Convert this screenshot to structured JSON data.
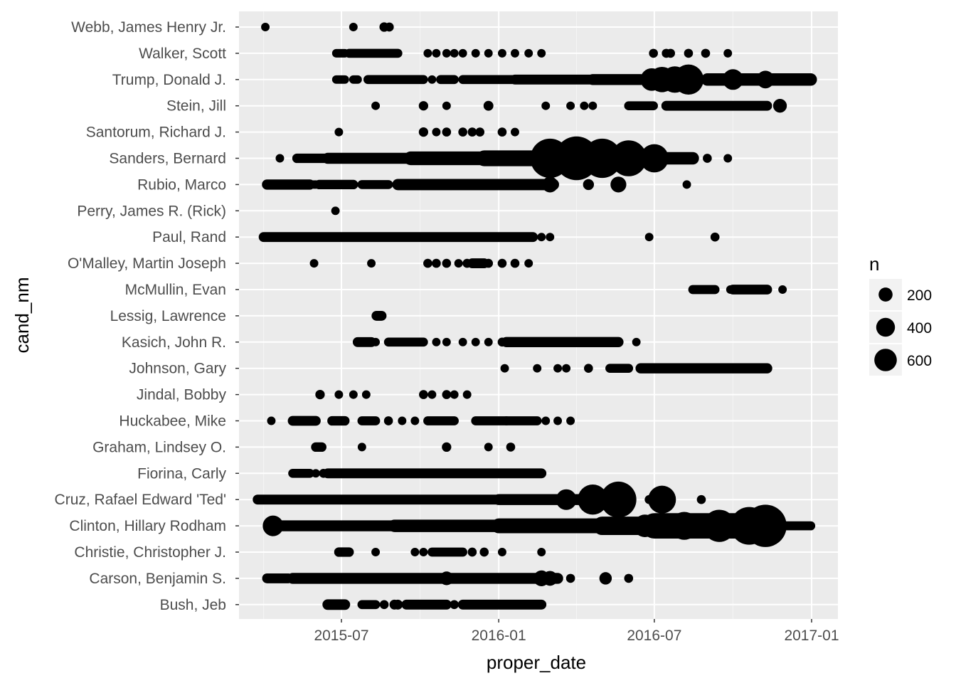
{
  "chart_data": {
    "type": "scatter",
    "xlabel": "proper_date",
    "ylabel": "cand_nm",
    "x_ticks": [
      "2015-07",
      "2016-01",
      "2016-07",
      "2017-01"
    ],
    "x_range": [
      "2015-03-23",
      "2017-01-10"
    ],
    "grid": true,
    "legend_position": "right",
    "legend": {
      "title": "n",
      "entries": [
        200,
        400,
        600
      ]
    },
    "categories": [
      "Bush, Jeb",
      "Carson, Benjamin S.",
      "Christie, Christopher J.",
      "Clinton, Hillary Rodham",
      "Cruz, Rafael Edward 'Ted'",
      "Fiorina, Carly",
      "Graham, Lindsey O.",
      "Huckabee, Mike",
      "Jindal, Bobby",
      "Johnson, Gary",
      "Kasich, John R.",
      "Lessig, Lawrence",
      "McMullin, Evan",
      "O'Malley, Martin Joseph",
      "Paul, Rand",
      "Perry, James R. (Rick)",
      "Rubio, Marco",
      "Sanders, Bernard",
      "Santorum, Richard J.",
      "Stein, Jill",
      "Trump, Donald J.",
      "Walker, Scott",
      "Webb, James Henry Jr."
    ],
    "series": [
      {
        "candidate": "Webb, James Henry Jr.",
        "segments": [],
        "points": [
          [
            "2015-04-03",
            8
          ],
          [
            "2015-07-15",
            8
          ],
          [
            "2015-08-20",
            12
          ],
          [
            "2015-08-26",
            10
          ]
        ]
      },
      {
        "candidate": "Walker, Scott",
        "segments": [
          [
            "2015-06-25",
            "2015-07-05",
            8
          ],
          [
            "2015-07-10",
            "2015-09-05",
            10
          ]
        ],
        "points": [
          [
            "2015-10-10",
            8
          ],
          [
            "2015-10-20",
            8
          ],
          [
            "2015-11-01",
            8
          ],
          [
            "2015-11-10",
            8
          ],
          [
            "2015-11-20",
            8
          ],
          [
            "2015-12-05",
            8
          ],
          [
            "2015-12-20",
            8
          ],
          [
            "2016-01-05",
            8
          ],
          [
            "2016-01-20",
            8
          ],
          [
            "2016-02-05",
            8
          ],
          [
            "2016-02-20",
            8
          ],
          [
            "2016-06-30",
            10
          ],
          [
            "2016-07-15",
            10
          ],
          [
            "2016-07-20",
            10
          ],
          [
            "2016-08-10",
            10
          ],
          [
            "2016-08-30",
            10
          ],
          [
            "2016-09-25",
            8
          ]
        ]
      },
      {
        "candidate": "Trump, Donald J.",
        "segments": [
          [
            "2015-06-25",
            "2015-07-05",
            8
          ],
          [
            "2015-07-15",
            "2015-07-20",
            8
          ],
          [
            "2015-08-01",
            "2015-10-05",
            10
          ],
          [
            "2015-10-25",
            "2015-11-10",
            10
          ],
          [
            "2015-11-20",
            "2016-01-20",
            10
          ],
          [
            "2016-01-20",
            "2016-04-20",
            14
          ],
          [
            "2016-04-20",
            "2016-06-15",
            20
          ],
          [
            "2016-09-01",
            "2016-12-31",
            30
          ]
        ],
        "points": [
          [
            "2015-10-15",
            8
          ],
          [
            "2016-06-28",
            150
          ],
          [
            "2016-07-10",
            200
          ],
          [
            "2016-07-25",
            220
          ],
          [
            "2016-08-10",
            300
          ],
          [
            "2016-10-01",
            120
          ],
          [
            "2016-11-08",
            80
          ]
        ]
      },
      {
        "candidate": "Stein, Jill",
        "segments": [
          [
            "2016-06-01",
            "2016-06-30",
            10
          ],
          [
            "2016-07-15",
            "2016-11-10",
            14
          ]
        ],
        "points": [
          [
            "2015-08-10",
            8
          ],
          [
            "2015-10-05",
            12
          ],
          [
            "2015-11-01",
            8
          ],
          [
            "2015-12-20",
            14
          ],
          [
            "2016-02-25",
            8
          ],
          [
            "2016-03-25",
            8
          ],
          [
            "2016-04-10",
            8
          ],
          [
            "2016-04-20",
            8
          ],
          [
            "2016-11-25",
            40
          ]
        ]
      },
      {
        "candidate": "Santorum, Richard J.",
        "segments": [],
        "points": [
          [
            "2015-06-28",
            8
          ],
          [
            "2015-10-05",
            12
          ],
          [
            "2015-10-20",
            8
          ],
          [
            "2015-11-01",
            10
          ],
          [
            "2015-11-20",
            10
          ],
          [
            "2015-12-01",
            10
          ],
          [
            "2015-12-10",
            10
          ],
          [
            "2016-01-05",
            10
          ],
          [
            "2016-01-20",
            8
          ]
        ]
      },
      {
        "candidate": "Sanders, Bernard",
        "segments": [
          [
            "2015-05-10",
            "2015-06-15",
            12
          ],
          [
            "2015-06-15",
            "2015-09-20",
            20
          ],
          [
            "2015-09-20",
            "2015-12-15",
            40
          ],
          [
            "2015-12-15",
            "2016-02-20",
            60
          ],
          [
            "2016-02-20",
            "2016-06-01",
            150
          ],
          [
            "2016-06-01",
            "2016-08-15",
            30
          ]
        ],
        "points": [
          [
            "2015-04-20",
            8
          ],
          [
            "2016-03-01",
            550
          ],
          [
            "2016-04-01",
            700
          ],
          [
            "2016-05-01",
            550
          ],
          [
            "2016-06-01",
            450
          ],
          [
            "2016-07-01",
            260
          ],
          [
            "2016-09-01",
            10
          ],
          [
            "2016-09-25",
            8
          ]
        ]
      },
      {
        "candidate": "Rubio, Marco",
        "segments": [
          [
            "2015-04-05",
            "2015-05-25",
            16
          ],
          [
            "2015-06-05",
            "2015-07-15",
            12
          ],
          [
            "2015-07-25",
            "2015-08-25",
            10
          ],
          [
            "2015-09-05",
            "2016-03-05",
            22
          ]
        ],
        "points": [
          [
            "2015-05-30",
            8
          ],
          [
            "2015-06-01",
            8
          ],
          [
            "2016-03-01",
            60
          ],
          [
            "2016-04-15",
            20
          ],
          [
            "2016-05-20",
            60
          ],
          [
            "2016-08-08",
            8
          ]
        ]
      },
      {
        "candidate": "Perry, James R. (Rick)",
        "segments": [],
        "points": [
          [
            "2015-06-24",
            8
          ]
        ]
      },
      {
        "candidate": "Paul, Rand",
        "segments": [
          [
            "2015-04-01",
            "2016-02-10",
            14
          ]
        ],
        "points": [
          [
            "2016-02-20",
            8
          ],
          [
            "2016-03-01",
            8
          ],
          [
            "2016-06-25",
            8
          ],
          [
            "2016-09-10",
            10
          ]
        ]
      },
      {
        "candidate": "O'Malley, Martin Joseph",
        "segments": [
          [
            "2015-12-01",
            "2015-12-15",
            14
          ]
        ],
        "points": [
          [
            "2015-05-30",
            8
          ],
          [
            "2015-08-05",
            8
          ],
          [
            "2015-10-10",
            10
          ],
          [
            "2015-10-20",
            10
          ],
          [
            "2015-11-01",
            10
          ],
          [
            "2015-11-15",
            8
          ],
          [
            "2015-11-25",
            10
          ],
          [
            "2015-12-20",
            10
          ],
          [
            "2016-01-05",
            10
          ],
          [
            "2016-01-20",
            10
          ],
          [
            "2016-02-05",
            8
          ]
        ]
      },
      {
        "candidate": "McMullin, Evan",
        "segments": [
          [
            "2016-08-15",
            "2016-09-10",
            10
          ],
          [
            "2016-10-01",
            "2016-11-10",
            14
          ]
        ],
        "points": [
          [
            "2016-09-28",
            8
          ],
          [
            "2016-11-28",
            8
          ]
        ]
      },
      {
        "candidate": "Lessig, Lawrence",
        "segments": [
          [
            "2015-08-11",
            "2015-08-17",
            14
          ]
        ],
        "points": []
      },
      {
        "candidate": "Kasich, John R.",
        "segments": [
          [
            "2015-07-20",
            "2015-08-05",
            14
          ],
          [
            "2015-08-25",
            "2015-10-05",
            10
          ],
          [
            "2016-01-10",
            "2016-05-20",
            16
          ]
        ],
        "points": [
          [
            "2015-08-10",
            8
          ],
          [
            "2015-10-20",
            8
          ],
          [
            "2015-11-01",
            8
          ],
          [
            "2015-11-20",
            8
          ],
          [
            "2015-12-05",
            8
          ],
          [
            "2015-12-20",
            8
          ],
          [
            "2016-01-05",
            10
          ],
          [
            "2016-06-10",
            8
          ]
        ]
      },
      {
        "candidate": "Johnson, Gary",
        "segments": [
          [
            "2016-05-10",
            "2016-06-01",
            10
          ],
          [
            "2016-06-15",
            "2016-11-10",
            16
          ]
        ],
        "points": [
          [
            "2016-01-08",
            8
          ],
          [
            "2016-02-15",
            8
          ],
          [
            "2016-03-10",
            8
          ],
          [
            "2016-03-20",
            8
          ],
          [
            "2016-04-15",
            10
          ]
        ]
      },
      {
        "candidate": "Jindal, Bobby",
        "segments": [],
        "points": [
          [
            "2015-06-06",
            12
          ],
          [
            "2015-06-28",
            8
          ],
          [
            "2015-07-15",
            8
          ],
          [
            "2015-07-30",
            8
          ],
          [
            "2015-10-05",
            10
          ],
          [
            "2015-10-15",
            8
          ],
          [
            "2015-11-01",
            10
          ],
          [
            "2015-11-10",
            8
          ],
          [
            "2015-11-25",
            8
          ]
        ]
      },
      {
        "candidate": "Huckabee, Mike",
        "segments": [
          [
            "2015-05-05",
            "2015-06-01",
            14
          ],
          [
            "2015-06-20",
            "2015-07-05",
            12
          ],
          [
            "2015-07-25",
            "2015-08-10",
            10
          ],
          [
            "2015-10-10",
            "2015-11-10",
            10
          ],
          [
            "2015-12-05",
            "2016-01-10",
            10
          ],
          [
            "2016-01-10",
            "2016-02-15",
            10
          ]
        ],
        "points": [
          [
            "2015-04-10",
            8
          ],
          [
            "2015-08-25",
            10
          ],
          [
            "2015-09-10",
            8
          ],
          [
            "2015-09-25",
            8
          ],
          [
            "2016-02-25",
            8
          ],
          [
            "2016-03-10",
            8
          ],
          [
            "2016-03-25",
            8
          ]
        ]
      },
      {
        "candidate": "Graham, Lindsey O.",
        "segments": [
          [
            "2015-06-01",
            "2015-06-08",
            12
          ]
        ],
        "points": [
          [
            "2015-07-25",
            8
          ],
          [
            "2015-11-01",
            12
          ],
          [
            "2015-12-20",
            8
          ],
          [
            "2016-01-15",
            10
          ]
        ]
      },
      {
        "candidate": "Fiorina, Carly",
        "segments": [
          [
            "2015-05-05",
            "2015-05-25",
            10
          ],
          [
            "2015-06-15",
            "2016-02-20",
            14
          ]
        ],
        "points": [
          [
            "2015-06-01",
            8
          ],
          [
            "2015-06-10",
            10
          ]
        ]
      },
      {
        "candidate": "Cruz, Rafael Edward 'Ted'",
        "segments": [
          [
            "2015-03-25",
            "2016-01-01",
            14
          ],
          [
            "2016-01-01",
            "2016-04-20",
            20
          ],
          [
            "2016-06-25",
            "2016-07-05",
            10
          ]
        ],
        "points": [
          [
            "2016-03-20",
            120
          ],
          [
            "2016-04-20",
            300
          ],
          [
            "2016-05-20",
            450
          ],
          [
            "2016-07-10",
            250
          ],
          [
            "2016-08-25",
            10
          ]
        ]
      },
      {
        "candidate": "Clinton, Hillary Rodham",
        "segments": [
          [
            "2015-04-15",
            "2015-09-01",
            20
          ],
          [
            "2015-09-01",
            "2016-01-01",
            30
          ],
          [
            "2016-01-01",
            "2016-05-01",
            50
          ],
          [
            "2016-05-01",
            "2016-07-01",
            90
          ],
          [
            "2016-07-01",
            "2016-11-08",
            200
          ],
          [
            "2016-11-10",
            "2016-12-31",
            10
          ]
        ],
        "points": [
          [
            "2015-04-12",
            120
          ],
          [
            "2016-06-20",
            150
          ],
          [
            "2016-08-05",
            250
          ],
          [
            "2016-09-15",
            350
          ],
          [
            "2016-10-20",
            500
          ],
          [
            "2016-11-08",
            650
          ]
        ]
      },
      {
        "candidate": "Christie, Christopher J.",
        "segments": [
          [
            "2015-06-28",
            "2015-07-10",
            12
          ],
          [
            "2015-10-15",
            "2015-11-20",
            10
          ]
        ],
        "points": [
          [
            "2015-08-10",
            8
          ],
          [
            "2015-09-25",
            8
          ],
          [
            "2015-10-05",
            8
          ],
          [
            "2015-12-01",
            10
          ],
          [
            "2015-12-15",
            10
          ],
          [
            "2016-01-05",
            8
          ],
          [
            "2016-02-20",
            8
          ]
        ]
      },
      {
        "candidate": "Carson, Benjamin S.",
        "segments": [
          [
            "2015-04-05",
            "2015-04-30",
            14
          ],
          [
            "2015-05-05",
            "2016-03-10",
            20
          ]
        ],
        "points": [
          [
            "2015-11-01",
            40
          ],
          [
            "2016-02-20",
            60
          ],
          [
            "2016-03-01",
            50
          ],
          [
            "2016-03-25",
            10
          ],
          [
            "2016-05-05",
            30
          ],
          [
            "2016-06-01",
            10
          ]
        ]
      },
      {
        "candidate": "Bush, Jeb",
        "segments": [
          [
            "2015-06-15",
            "2015-07-05",
            18
          ],
          [
            "2015-07-25",
            "2015-08-10",
            10
          ],
          [
            "2015-09-15",
            "2015-11-01",
            14
          ],
          [
            "2015-11-20",
            "2016-02-20",
            14
          ]
        ],
        "points": [
          [
            "2015-08-20",
            10
          ],
          [
            "2015-09-01",
            14
          ],
          [
            "2015-09-05",
            14
          ],
          [
            "2015-11-10",
            10
          ]
        ]
      }
    ]
  }
}
